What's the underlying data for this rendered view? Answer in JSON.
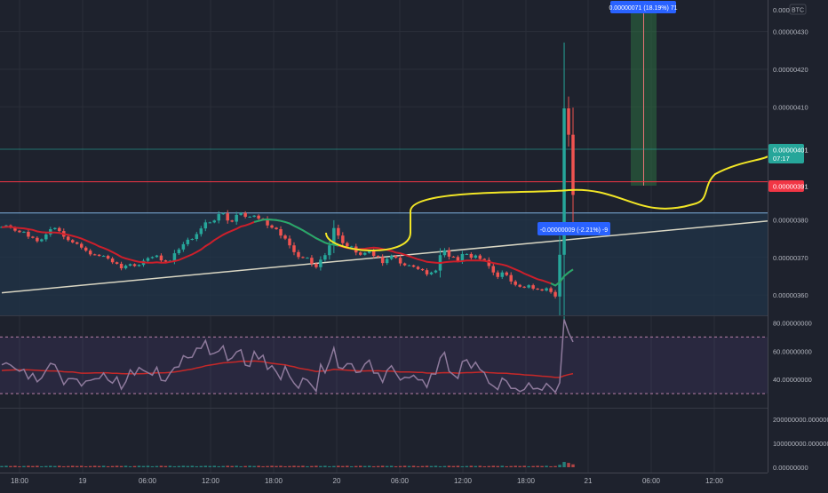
{
  "colors": {
    "background": "#1e222d",
    "up": "#26a69a",
    "down": "#ef5350",
    "ma_slow": "#cc1f2b",
    "ma_fast": "#22ab6d",
    "rsi_line": "#8e7a9c",
    "rsi_ma": "#c62828",
    "trendline": "#d9d6c3",
    "yellow_path": "#f2e626",
    "red_hline": "#f23645",
    "range_line": "#7fb0dd",
    "zone_fill": "#203448",
    "grid": "#2a2e39",
    "axis_text": "#b2b5be",
    "badge_blue": "#2962ff",
    "badge_teal": "#26a69a",
    "badge_red": "#f23645"
  },
  "price_axis": {
    "currency": "BTC",
    "ticks": [
      "0.00000430",
      "0.00000420",
      "0.00000410",
      "0.00000380",
      "0.00000370",
      "0.00000360"
    ],
    "top_partial_label": "0.000004"
  },
  "price_labels": {
    "current": "0.00000401",
    "countdown": "07:17",
    "red_level": "0.00000391"
  },
  "measure_labels": {
    "top": "0.00000071 (18.19%) 71",
    "bottom": "-0.00000009 (-2.21%) -9"
  },
  "rsi_axis": {
    "ticks": [
      "80.00000000",
      "60.00000000",
      "40.00000000"
    ]
  },
  "volume_axis": {
    "ticks": [
      "200000000.00000000",
      "100000000.00000000",
      "0.00000000"
    ]
  },
  "time_axis": {
    "labels": [
      "18:00",
      "19",
      "06:00",
      "12:00",
      "18:00",
      "20",
      "06:00",
      "12:00",
      "18:00",
      "21",
      "06:00",
      "12:00"
    ]
  },
  "chart_data": [
    {
      "type": "candlestick",
      "title": "",
      "ylim": [
        3.546e-06,
        4.384e-06
      ],
      "x": [
        "18:00",
        "19",
        "06:00",
        "12:00",
        "18:00",
        "20",
        "06:00",
        "12:00",
        "18:00",
        "21",
        "06:00",
        "12:00"
      ],
      "closes": [
        3.781e-06,
        3.785e-06,
        3.779e-06,
        3.771e-06,
        3.767e-06,
        3.768e-06,
        3.755e-06,
        3.752e-06,
        3.743e-06,
        3.748e-06,
        3.761e-06,
        3.775e-06,
        3.778e-06,
        3.77e-06,
        3.755e-06,
        3.746e-06,
        3.74e-06,
        3.736e-06,
        3.726e-06,
        3.718e-06,
        3.708e-06,
        3.707e-06,
        3.704e-06,
        3.704e-06,
        3.697e-06,
        3.687e-06,
        3.683e-06,
        3.671e-06,
        3.678e-06,
        3.682e-06,
        3.677e-06,
        3.68e-06,
        3.691e-06,
        3.698e-06,
        3.701e-06,
        3.705e-06,
        3.692e-06,
        3.689e-06,
        3.691e-06,
        3.711e-06,
        3.721e-06,
        3.735e-06,
        3.747e-06,
        3.749e-06,
        3.762e-06,
        3.777e-06,
        3.793e-06,
        3.793e-06,
        3.798e-06,
        3.815e-06,
        3.817e-06,
        3.798e-06,
        3.795e-06,
        3.813e-06,
        3.818e-06,
        3.808e-06,
        3.808e-06,
        3.811e-06,
        3.803e-06,
        3.802e-06,
        3.785e-06,
        3.779e-06,
        3.775e-06,
        3.758e-06,
        3.75e-06,
        3.732e-06,
        3.714e-06,
        3.701e-06,
        3.699e-06,
        3.699e-06,
        3.683e-06,
        3.674e-06,
        3.694e-06,
        3.706e-06,
        3.732e-06,
        3.778e-06,
        3.758e-06,
        3.738e-06,
        3.729e-06,
        3.729e-06,
        3.713e-06,
        3.707e-06,
        3.712e-06,
        3.717e-06,
        3.704e-06,
        3.701e-06,
        3.685e-06,
        3.696e-06,
        3.704e-06,
        3.699e-06,
        3.684e-06,
        3.679e-06,
        3.679e-06,
        3.675e-06,
        3.669e-06,
        3.666e-06,
        3.655e-06,
        3.66e-06,
        3.665e-06,
        3.706e-06,
        3.719e-06,
        3.702e-06,
        3.701e-06,
        3.691e-06,
        3.709e-06,
        3.709e-06,
        3.699e-06,
        3.705e-06,
        3.696e-06,
        3.693e-06,
        3.677e-06,
        3.66e-06,
        3.648e-06,
        3.66e-06,
        3.653e-06,
        3.636e-06,
        3.627e-06,
        3.622e-06,
        3.62e-06,
        3.626e-06,
        3.617e-06,
        3.615e-06,
        3.612e-06,
        3.618e-06,
        3.608e-06,
        3.596e-06,
        3.707e-06,
        4.096e-06,
        4.026e-06,
        3.866e-06
      ],
      "ma": [
        3.78e-06,
        3.781e-06,
        3.781e-06,
        3.779e-06,
        3.778e-06,
        3.777e-06,
        3.775e-06,
        3.773e-06,
        3.769e-06,
        3.767e-06,
        3.766e-06,
        3.766e-06,
        3.766e-06,
        3.765e-06,
        3.762e-06,
        3.76e-06,
        3.757e-06,
        3.754e-06,
        3.75e-06,
        3.745e-06,
        3.74e-06,
        3.735e-06,
        3.729e-06,
        3.725e-06,
        3.72e-06,
        3.714e-06,
        3.708e-06,
        3.701e-06,
        3.697e-06,
        3.694e-06,
        3.691e-06,
        3.688e-06,
        3.687e-06,
        3.686e-06,
        3.686e-06,
        3.687e-06,
        3.686e-06,
        3.686e-06,
        3.688e-06,
        3.69e-06,
        3.693e-06,
        3.698e-06,
        3.703e-06,
        3.708e-06,
        3.714e-06,
        3.721e-06,
        3.73e-06,
        3.737e-06,
        3.746e-06,
        3.753e-06,
        3.76e-06,
        3.766e-06,
        3.771e-06,
        3.776e-06,
        3.782e-06,
        3.785e-06,
        3.789e-06,
        3.794e-06,
        3.797e-06,
        3.8e-06,
        3.801e-06,
        3.8e-06,
        3.799e-06,
        3.797e-06,
        3.794e-06,
        3.79e-06,
        3.784e-06,
        3.778e-06,
        3.772e-06,
        3.765e-06,
        3.758e-06,
        3.751e-06,
        3.745e-06,
        3.739e-06,
        3.735e-06,
        3.734e-06,
        3.731e-06,
        3.728e-06,
        3.725e-06,
        3.723e-06,
        3.721e-06,
        3.722e-06,
        3.723e-06,
        3.725e-06,
        3.726e-06,
        3.725e-06,
        3.722e-06,
        3.72e-06,
        3.717e-06,
        3.713e-06,
        3.711e-06,
        3.707e-06,
        3.703e-06,
        3.699e-06,
        3.695e-06,
        3.692e-06,
        3.688e-06,
        3.687e-06,
        3.686e-06,
        3.685e-06,
        3.687e-06,
        3.688e-06,
        3.689e-06,
        3.689e-06,
        3.69e-06,
        3.692e-06,
        3.692e-06,
        3.692e-06,
        3.692e-06,
        3.691e-06,
        3.688e-06,
        3.685e-06,
        3.683e-06,
        3.681e-06,
        3.678e-06,
        3.673e-06,
        3.668e-06,
        3.663e-06,
        3.657e-06,
        3.652e-06,
        3.647e-06,
        3.642e-06,
        3.639e-06,
        3.635e-06,
        3.631e-06,
        3.625e-06,
        3.634e-06,
        3.65e-06,
        3.66e-06,
        3.668e-06
      ],
      "annotations": {
        "red_hline": 3.901e-06,
        "range_top": 3.818e-06,
        "range_bottom": 3.546e-06,
        "trendline": [
          [
            0,
            3.606e-06
          ],
          [
            196,
            3.822e-06
          ]
        ]
      }
    },
    {
      "type": "line",
      "title": "",
      "ylim": [
        20,
        84
      ],
      "bands": [
        70,
        30
      ],
      "rsi": [
        50.3,
        51.7,
        50.1,
        47.6,
        45.8,
        47.1,
        40.3,
        44.2,
        38.3,
        41.1,
        46.4,
        51.4,
        50.4,
        44,
        36.4,
        40.5,
        40.6,
        40.1,
        35.4,
        38.9,
        39.3,
        40.4,
        40.6,
        44.5,
        39.6,
        37.4,
        41.8,
        33.2,
        38.3,
        46.8,
        43.1,
        48.4,
        46.3,
        44.8,
        43,
        48.7,
        39.4,
        38.9,
        44.3,
        48.4,
        48.9,
        56.8,
        55.2,
        55.7,
        62.1,
        61.9,
        67.5,
        57.6,
        58.5,
        60,
        63.7,
        53.3,
        55.2,
        59.4,
        60.9,
        50.1,
        49.2,
        59.8,
        54.4,
        57.1,
        47.1,
        49.7,
        45.4,
        39.9,
        49.2,
        42.1,
        37.3,
        33.8,
        40.9,
        39.5,
        35.7,
        31.7,
        50.6,
        44.6,
        52.6,
        62.3,
        48.4,
        47.7,
        51.1,
        51,
        44.9,
        45.3,
        50.8,
        53.6,
        44.5,
        44.5,
        38,
        46.5,
        49.7,
        44.4,
        39.5,
        41.5,
        41.1,
        42.9,
        39.7,
        39.7,
        34.4,
        43.9,
        43.7,
        55.2,
        59.1,
        45.7,
        43.3,
        40.7,
        52.6,
        53.9,
        47.9,
        52.2,
        47,
        44.7,
        37.4,
        35.3,
        32.8,
        40.9,
        38.8,
        33.7,
        33.6,
        31.4,
        32.9,
        37.5,
        33.3,
        33.7,
        32.4,
        37.1,
        34.1,
        30.9,
        37.7,
        82.4,
        73.1,
        66.5
      ],
      "rsi_ma": [
        46.3,
        46.5,
        46.6,
        46.7,
        46.7,
        46.8,
        46.7,
        46.6,
        46.4,
        46.2,
        46.1,
        46,
        46,
        45.8,
        45.4,
        45.3,
        45.2,
        44.8,
        44.4,
        44.4,
        44.5,
        44.6,
        44.6,
        44.7,
        44.6,
        44.3,
        44.3,
        44.1,
        44,
        44.1,
        44,
        44,
        44.1,
        44.3,
        44.4,
        44.7,
        44.6,
        44.7,
        45,
        45.3,
        45.7,
        46.3,
        46.8,
        47.3,
        48.1,
        48.7,
        49.6,
        50.1,
        50.6,
        51.1,
        51.7,
        51.9,
        52.1,
        52.4,
        52.9,
        52.8,
        52.7,
        53,
        52.8,
        52.5,
        51.9,
        51.4,
        51,
        50.6,
        50.3,
        49.5,
        48.9,
        48,
        47.5,
        47,
        46.3,
        45.6,
        45.9,
        46,
        46.5,
        47.1,
        46.9,
        46.7,
        46.5,
        46.3,
        46.1,
        46,
        46,
        46.1,
        46,
        46.1,
        45.9,
        45.9,
        45.8,
        45.5,
        45.3,
        45.3,
        45.2,
        45.1,
        45,
        44.9,
        44.5,
        44.5,
        44.4,
        44.6,
        44.8,
        44.7,
        44.6,
        44.4,
        44.6,
        44.8,
        44.8,
        45,
        45.1,
        45.1,
        44.8,
        44.6,
        44.4,
        44.4,
        44.3,
        44,
        43.8,
        43.6,
        43.2,
        43.1,
        42.9,
        42.6,
        42.3,
        42.1,
        41.8,
        41.4,
        41.4,
        42.6,
        43.4,
        44.1
      ]
    },
    {
      "type": "bar",
      "title": "",
      "ylim": [
        0,
        240000000
      ],
      "values": [
        5000000,
        6000000,
        5000000,
        6000000,
        4000000,
        5000000,
        6000000,
        5000000,
        6000000,
        4000000,
        5000000,
        6000000,
        5000000,
        6000000,
        4000000,
        5000000,
        6000000,
        5000000,
        6000000,
        4000000,
        5000000,
        6000000,
        5000000,
        6000000,
        4000000,
        5000000,
        6000000,
        5000000,
        6000000,
        4000000,
        5000000,
        6000000,
        5000000,
        6000000,
        4000000,
        5000000,
        6000000,
        5000000,
        6000000,
        4000000,
        5000000,
        6000000,
        5000000,
        6000000,
        4000000,
        5000000,
        6000000,
        5000000,
        6000000,
        4000000,
        5000000,
        6000000,
        5000000,
        6000000,
        4000000,
        5000000,
        6000000,
        5000000,
        6000000,
        4000000,
        5000000,
        6000000,
        5000000,
        6000000,
        4000000,
        5000000,
        6000000,
        5000000,
        6000000,
        4000000,
        5000000,
        6000000,
        5000000,
        6000000,
        4000000,
        5000000,
        6000000,
        5000000,
        6000000,
        4000000,
        5000000,
        6000000,
        5000000,
        6000000,
        4000000,
        5000000,
        6000000,
        5000000,
        6000000,
        4000000,
        5000000,
        6000000,
        5000000,
        6000000,
        4000000,
        5000000,
        6000000,
        5000000,
        6000000,
        4000000,
        5000000,
        6000000,
        5000000,
        6000000,
        4000000,
        5000000,
        6000000,
        5000000,
        6000000,
        4000000,
        5000000,
        6000000,
        5000000,
        6000000,
        4000000,
        5000000,
        6000000,
        5000000,
        6000000,
        4000000,
        5000000,
        6000000,
        5000000,
        6000000,
        4000000,
        5000000,
        10000000,
        22000000,
        18000000,
        12000000
      ]
    }
  ]
}
